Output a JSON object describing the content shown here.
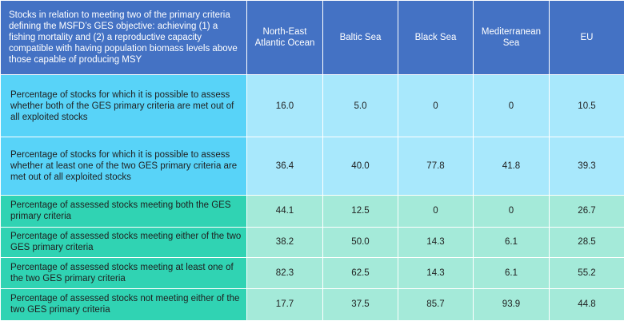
{
  "table": {
    "header": {
      "label": "Stocks in relation to meeting two of the primary criteria defining the MSFD’s GES objective: achieving (1) a fishing mortality and (2) a reproductive capacity compatible with having population biomass levels above those capable of producing MSY",
      "columns": [
        "North-East Atlantic Ocean",
        "Baltic Sea",
        "Black Sea",
        "Mediterranean Sea",
        "EU"
      ]
    },
    "rows": [
      {
        "label": "Percentage of stocks for which it is possible to assess whether both of the GES primary criteria are met out of all exploited stocks",
        "values": [
          "16.0",
          "5.0",
          "0",
          "0",
          "10.5"
        ]
      },
      {
        "label": "Percentage of stocks for which it is possible to assess whether at least one of the two GES primary criteria are met out of all exploited stocks",
        "values": [
          "36.4",
          "40.0",
          "77.8",
          "41.8",
          "39.3"
        ]
      },
      {
        "label": "Percentage of assessed stocks meeting both the GES primary criteria",
        "values": [
          "44.1",
          "12.5",
          "0",
          "0",
          "26.7"
        ]
      },
      {
        "label": "Percentage of assessed stocks meeting either of the two GES primary criteria",
        "values": [
          "38.2",
          "50.0",
          "14.3",
          "6.1",
          "28.5"
        ]
      },
      {
        "label": "Percentage of assessed stocks meeting at least one of the two GES primary criteria",
        "values": [
          "82.3",
          "62.5",
          "14.3",
          "6.1",
          "55.2"
        ]
      },
      {
        "label": "Percentage  of assessed stocks not meeting either of the two GES primary criteria",
        "values": [
          "17.7",
          "37.5",
          "85.7",
          "93.9",
          "44.8"
        ]
      }
    ]
  },
  "colors": {
    "header": "#4472c4",
    "group1_label": "#58d3f8",
    "group1_value": "#a8e8fc",
    "group2_label": "#30d3b3",
    "group2_value": "#a4ead9"
  }
}
